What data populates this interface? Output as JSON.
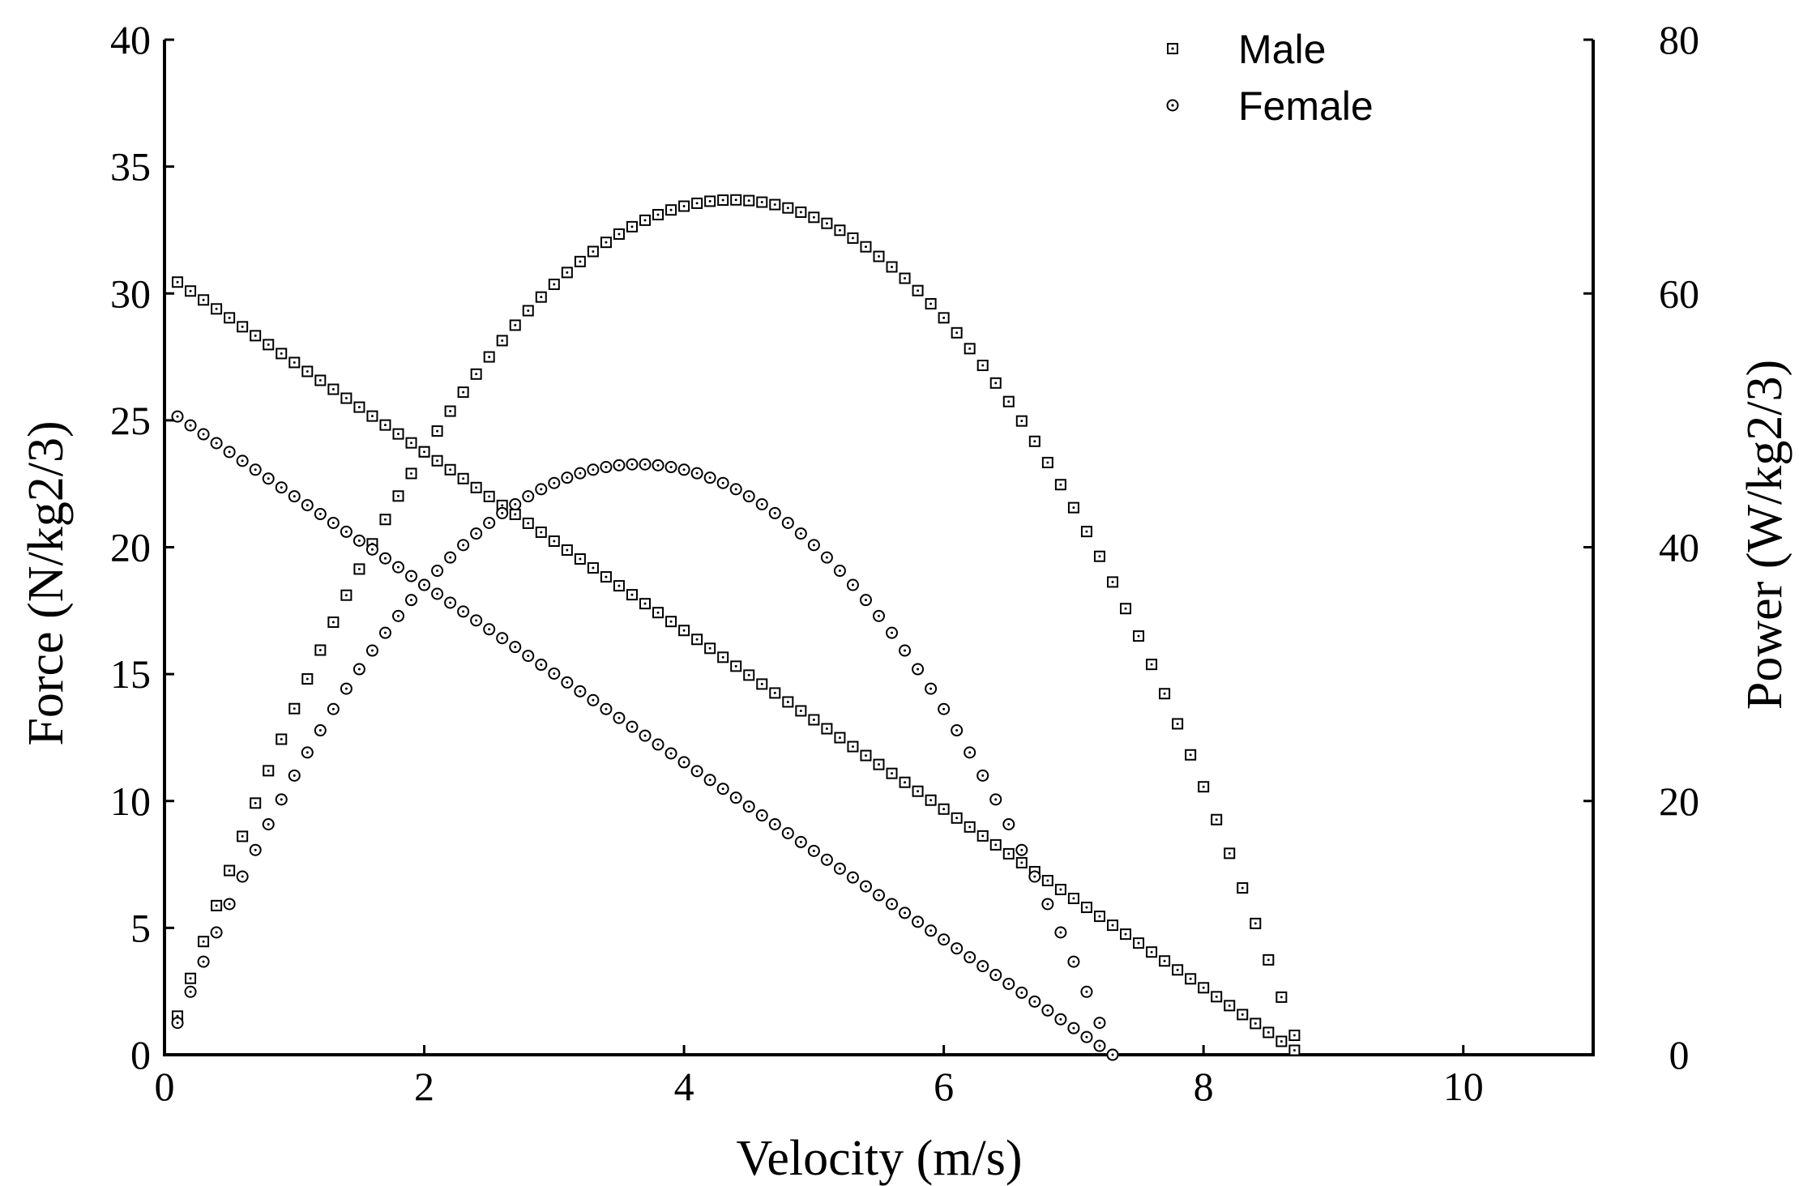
{
  "chart_data": {
    "type": "scatter",
    "title": "",
    "xlabel": "Velocity (m/s)",
    "ylabel": "Force (N/kg2/3)",
    "y2label": "Power (W/kg2/3)",
    "xlim": [
      0,
      11
    ],
    "ylim": [
      0,
      40
    ],
    "y2lim": [
      0,
      80
    ],
    "xticks": [
      "0",
      "2",
      "4",
      "6",
      "8",
      "10"
    ],
    "yticks": [
      "0",
      "5",
      "10",
      "15",
      "20",
      "25",
      "30",
      "35",
      "40"
    ],
    "y2ticks": [
      "0",
      "20",
      "40",
      "60",
      "80"
    ],
    "grid": false,
    "legend_position": "top-right",
    "legend": [
      {
        "label": "Male",
        "marker": "square"
      },
      {
        "label": "Female",
        "marker": "circle"
      }
    ],
    "series": [
      {
        "name": "Male force",
        "group": "Male",
        "marker": "square",
        "axis": "left",
        "model": "linear",
        "x_start": 0.1,
        "x_end": 8.7,
        "x_step": 0.1,
        "y_at_x0": 30.8,
        "x_intercept": 8.75
      },
      {
        "name": "Male power",
        "group": "Male",
        "marker": "square",
        "axis": "right",
        "model": "force_times_velocity",
        "x_start": 0.1,
        "x_end": 8.7,
        "x_step": 0.1,
        "y_at_x0": 30.8,
        "x_intercept": 8.75,
        "peak": {
          "x": 4.35,
          "y": 67.3
        }
      },
      {
        "name": "Female force",
        "group": "Female",
        "marker": "circle",
        "axis": "left",
        "model": "linear",
        "x_start": 0.1,
        "x_end": 7.3,
        "x_step": 0.1,
        "y_at_x0": 25.5,
        "x_intercept": 7.3
      },
      {
        "name": "Female power",
        "group": "Female",
        "marker": "circle",
        "axis": "right",
        "model": "force_times_velocity",
        "x_start": 0.1,
        "x_end": 7.3,
        "x_step": 0.1,
        "y_at_x0": 25.5,
        "x_intercept": 7.3,
        "peak": {
          "x": 3.65,
          "y": 46.6
        }
      }
    ]
  }
}
